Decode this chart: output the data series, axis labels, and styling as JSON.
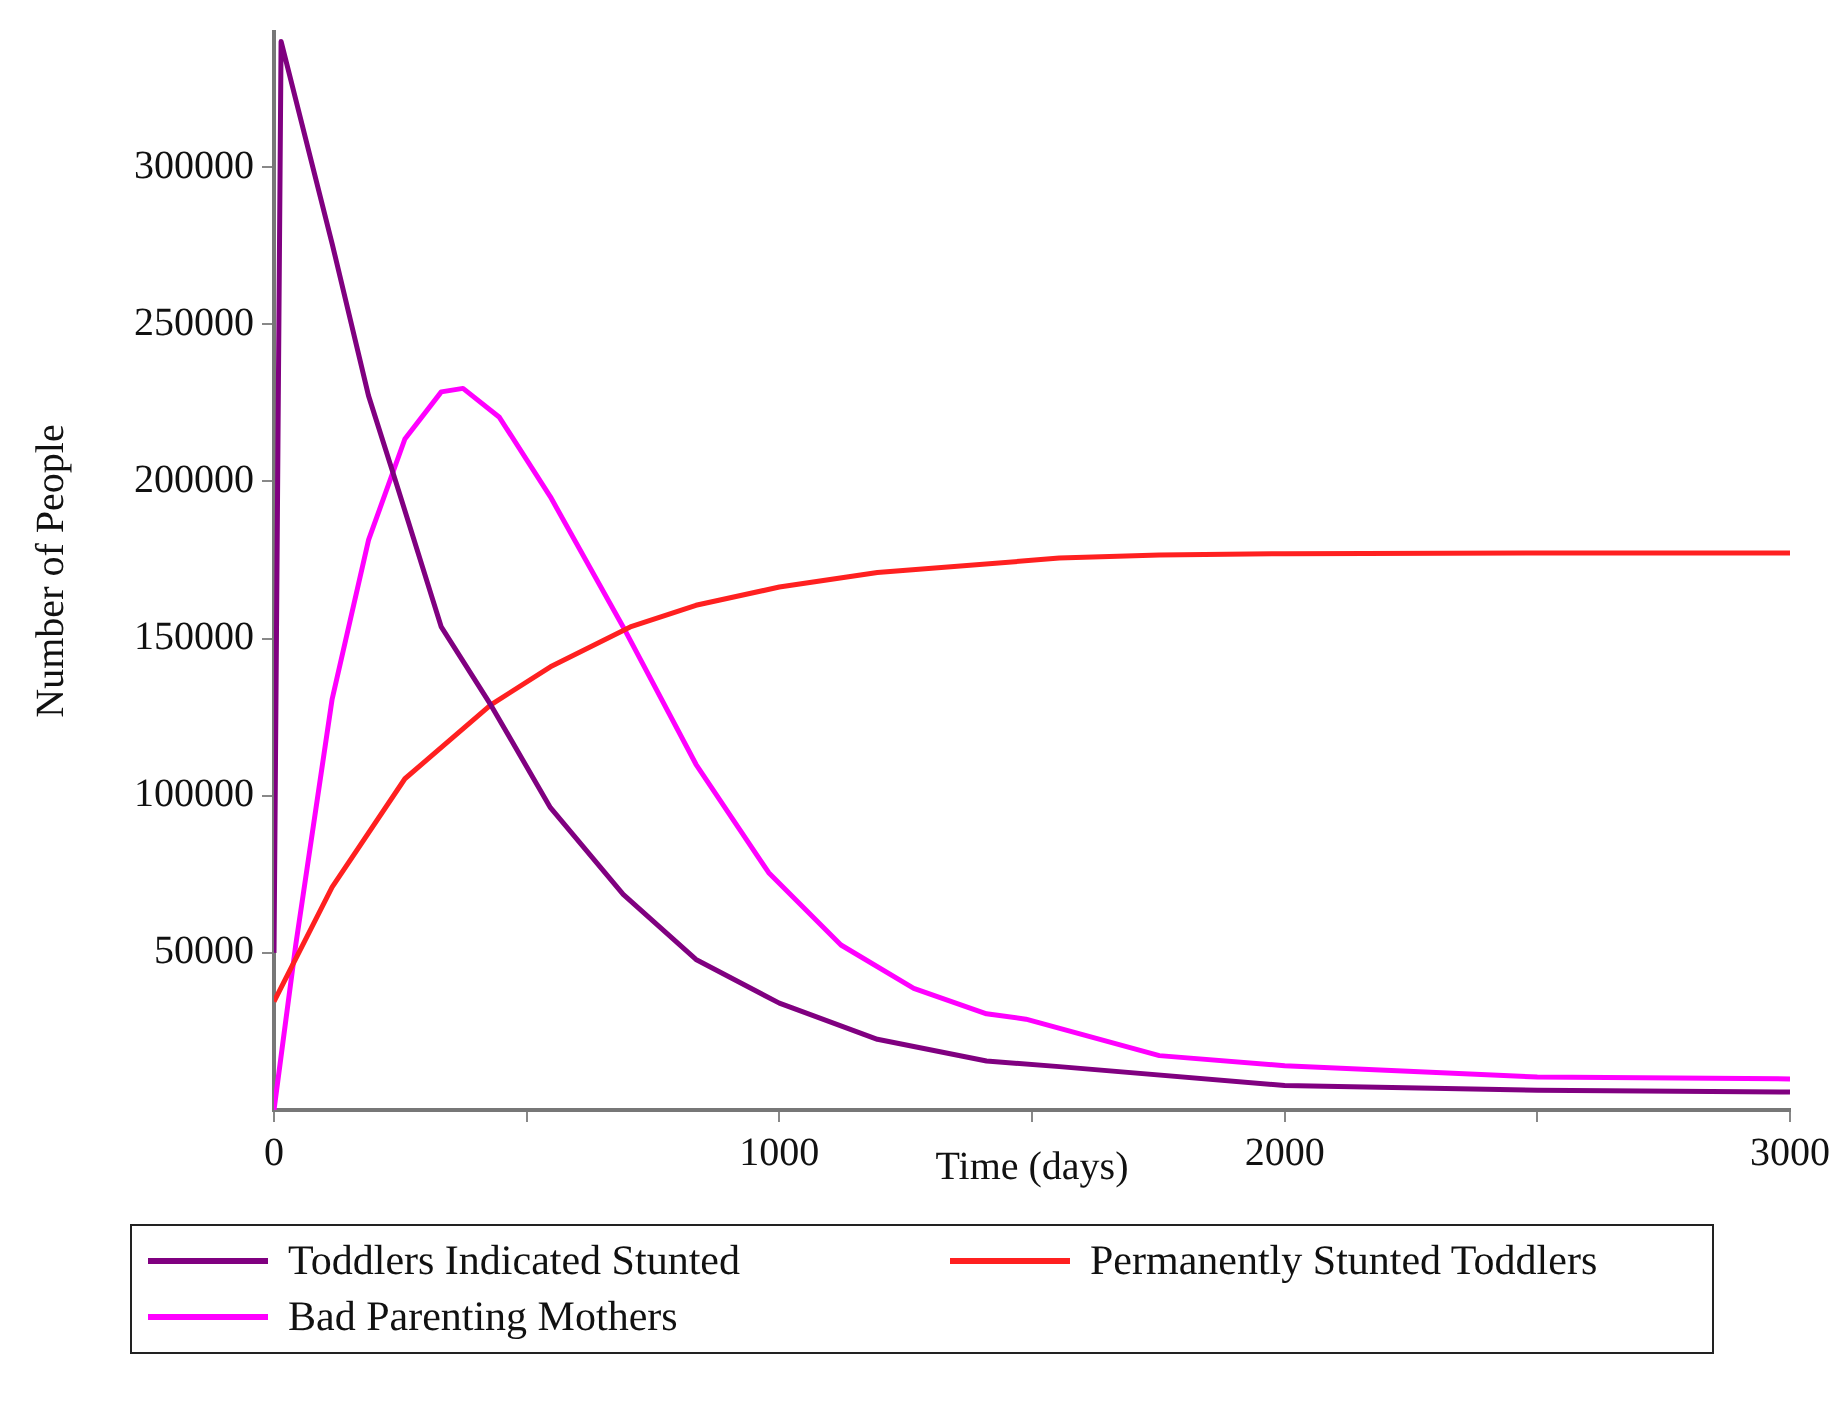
{
  "chart_data": {
    "type": "line",
    "xlabel": "Time (days)",
    "ylabel": "Number of People",
    "xlim": [
      0,
      3000
    ],
    "ylim": [
      0,
      343000
    ],
    "xticks": [
      0,
      {
        "value": 500,
        "label": null
      },
      1000,
      {
        "value": 1500,
        "label": null
      },
      2000,
      {
        "value": 2500,
        "label": null
      },
      3000
    ],
    "yticks": [
      50000,
      100000,
      150000,
      200000,
      250000,
      300000
    ],
    "grid": false,
    "legend": "bottom",
    "marker": "none",
    "line_style": "solid",
    "series": [
      {
        "name": "Toddlers Indicated Stunted",
        "color": "#800080",
        "x": [
          0,
          14,
          115,
          187,
          237,
          331,
          429,
          547,
          691,
          835,
          1000,
          1194,
          1410,
          1554,
          2000,
          2500,
          3000
        ],
        "values": [
          50000,
          340000,
          275700,
          227300,
          202000,
          153700,
          128900,
          96200,
          68600,
          47900,
          34000,
          22500,
          15600,
          13800,
          7800,
          6300,
          5700
        ]
      },
      {
        "name": "Permanently Stunted Toddlers",
        "color": "#ff2020",
        "x": [
          0,
          115,
          259,
          429,
          547,
          705,
          835,
          1000,
          1194,
          1554,
          1752,
          2000,
          2500,
          3000
        ],
        "values": [
          34500,
          70900,
          105400,
          128900,
          141000,
          153700,
          160600,
          166400,
          171000,
          175600,
          176600,
          177000,
          177200,
          177200
        ]
      },
      {
        "name": "Bad Parenting Mothers",
        "color": "#ff00ff",
        "x": [
          0,
          43,
          115,
          187,
          259,
          331,
          374,
          446,
          547,
          691,
          835,
          979,
          1122,
          1266,
          1410,
          1488,
          1752,
          2000,
          2500,
          3000
        ],
        "values": [
          0,
          52500,
          130700,
          181300,
          213500,
          228500,
          229600,
          220400,
          195100,
          153700,
          110000,
          75500,
          52500,
          38700,
          30600,
          28900,
          17300,
          14100,
          10500,
          9900
        ]
      }
    ]
  }
}
